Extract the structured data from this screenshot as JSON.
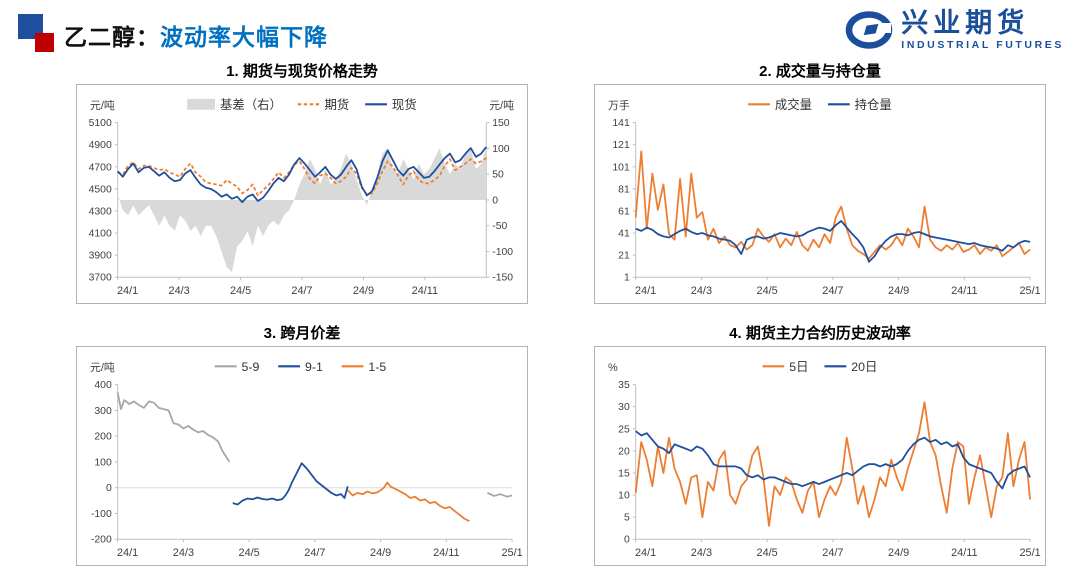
{
  "header": {
    "topic": "乙二醇：",
    "subtitle": "波动率大幅下降",
    "logo_cn": "兴业期货",
    "logo_en": "INDUSTRIAL FUTURES"
  },
  "colors": {
    "accent_blue": "#0070C0",
    "brand_blue": "#1B4F9C",
    "line_blue": "#1F4E9E",
    "line_orange": "#ED7D31",
    "line_gray": "#A6A6A6",
    "area_gray": "#D9D9D9",
    "deco_blue": "#1F4E9E",
    "deco_red": "#C00000"
  },
  "chart_data": [
    {
      "type": "line",
      "title": "1. 期货与现货价格走势",
      "unit_left": "元/吨",
      "unit_right": "元/吨",
      "x_range": [
        0,
        12
      ],
      "x_tick_pos": [
        0,
        2,
        4,
        6,
        8,
        10
      ],
      "x_ticks": [
        "24/1",
        "24/3",
        "24/5",
        "24/7",
        "24/9",
        "24/11"
      ],
      "ylim_left": [
        3700,
        5100
      ],
      "yticks_left": [
        3700,
        3900,
        4100,
        4300,
        4500,
        4700,
        4900,
        5100
      ],
      "ylim_right": [
        -150,
        150
      ],
      "yticks_right": [
        -150,
        -100,
        -50,
        0,
        50,
        100,
        150
      ],
      "grid": false,
      "legend_position": "top",
      "series": [
        {
          "name": "基差（右）",
          "type": "area",
          "axis": "right",
          "color": "#D9D9D9",
          "values": [
            10,
            -20,
            -30,
            -10,
            -30,
            -20,
            -10,
            -30,
            -50,
            -30,
            -50,
            -60,
            -30,
            -40,
            -60,
            -50,
            -70,
            -50,
            -50,
            -70,
            -100,
            -130,
            -140,
            -90,
            -80,
            -60,
            -90,
            -50,
            -70,
            -50,
            -40,
            -50,
            -30,
            -20,
            0,
            30,
            50,
            80,
            60,
            30,
            60,
            30,
            40,
            60,
            90,
            70,
            40,
            10,
            -10,
            20,
            50,
            90,
            100,
            60,
            50,
            80,
            60,
            40,
            70,
            50,
            60,
            80,
            100,
            70,
            50,
            70,
            60,
            90,
            100,
            60,
            70,
            100
          ]
        },
        {
          "name": "期货",
          "type": "line",
          "dash": true,
          "axis": "left",
          "color": "#ED7D31",
          "values": [
            4650,
            4630,
            4710,
            4740,
            4680,
            4710,
            4710,
            4690,
            4670,
            4680,
            4650,
            4630,
            4610,
            4680,
            4730,
            4650,
            4610,
            4560,
            4550,
            4540,
            4530,
            4580,
            4550,
            4520,
            4460,
            4490,
            4540,
            4440,
            4490,
            4530,
            4590,
            4650,
            4600,
            4650,
            4720,
            4750,
            4680,
            4590,
            4550,
            4620,
            4640,
            4600,
            4550,
            4570,
            4610,
            4690,
            4640,
            4510,
            4450,
            4460,
            4550,
            4660,
            4750,
            4700,
            4620,
            4540,
            4620,
            4660,
            4580,
            4550,
            4550,
            4580,
            4620,
            4710,
            4770,
            4670,
            4700,
            4730,
            4770,
            4730,
            4750,
            4780
          ]
        },
        {
          "name": "现货",
          "type": "line",
          "axis": "left",
          "color": "#1F4E9E",
          "values": [
            4660,
            4610,
            4680,
            4730,
            4650,
            4690,
            4700,
            4660,
            4620,
            4650,
            4600,
            4570,
            4580,
            4640,
            4670,
            4600,
            4540,
            4510,
            4500,
            4470,
            4430,
            4450,
            4410,
            4430,
            4380,
            4430,
            4450,
            4390,
            4420,
            4480,
            4550,
            4600,
            4570,
            4630,
            4720,
            4780,
            4730,
            4670,
            4610,
            4650,
            4700,
            4630,
            4590,
            4630,
            4700,
            4760,
            4680,
            4520,
            4440,
            4480,
            4600,
            4750,
            4850,
            4760,
            4670,
            4620,
            4680,
            4700,
            4650,
            4600,
            4610,
            4660,
            4720,
            4780,
            4820,
            4740,
            4760,
            4820,
            4870,
            4790,
            4820,
            4880
          ]
        }
      ]
    },
    {
      "type": "line",
      "title": "2. 成交量与持仓量",
      "unit_left": "万手",
      "x_range": [
        0,
        12
      ],
      "x_tick_pos": [
        0,
        2,
        4,
        6,
        8,
        10,
        12
      ],
      "x_ticks": [
        "24/1",
        "24/3",
        "24/5",
        "24/7",
        "24/9",
        "24/11",
        "25/1"
      ],
      "ylim_left": [
        1,
        141
      ],
      "yticks_left": [
        1,
        21,
        41,
        61,
        81,
        101,
        121,
        141
      ],
      "grid": false,
      "legend_position": "top",
      "series": [
        {
          "name": "成交量",
          "type": "line",
          "axis": "left",
          "color": "#ED7D31",
          "values": [
            55,
            115,
            45,
            95,
            62,
            85,
            40,
            35,
            90,
            38,
            95,
            55,
            60,
            35,
            45,
            32,
            38,
            30,
            28,
            33,
            26,
            30,
            45,
            38,
            33,
            40,
            28,
            36,
            30,
            42,
            30,
            25,
            35,
            28,
            40,
            32,
            55,
            65,
            45,
            30,
            25,
            22,
            18,
            24,
            30,
            26,
            30,
            38,
            30,
            45,
            38,
            28,
            65,
            35,
            28,
            25,
            30,
            26,
            32,
            24,
            26,
            30,
            22,
            28,
            25,
            30,
            20,
            24,
            28,
            32,
            22,
            26
          ]
        },
        {
          "name": "持仓量",
          "type": "line",
          "axis": "left",
          "color": "#1F4E9E",
          "values": [
            45,
            43,
            46,
            44,
            40,
            38,
            37,
            40,
            43,
            45,
            42,
            40,
            41,
            39,
            38,
            36,
            35,
            34,
            30,
            22,
            35,
            37,
            38,
            36,
            37,
            39,
            41,
            40,
            39,
            38,
            39,
            42,
            44,
            46,
            45,
            43,
            48,
            52,
            46,
            40,
            35,
            28,
            15,
            20,
            28,
            34,
            38,
            40,
            40,
            39,
            41,
            42,
            40,
            38,
            37,
            36,
            35,
            34,
            33,
            32,
            31,
            32,
            30,
            29,
            28,
            27,
            25,
            30,
            28,
            32,
            34,
            33
          ]
        }
      ]
    },
    {
      "type": "line",
      "title": "3. 跨月价差",
      "unit_left": "元/吨",
      "x_range": [
        0,
        12
      ],
      "x_tick_pos": [
        0,
        2,
        4,
        6,
        8,
        10,
        12
      ],
      "x_ticks": [
        "24/1",
        "24/3",
        "24/5",
        "24/7",
        "24/9",
        "24/11",
        "25/1"
      ],
      "ylim_left": [
        -200,
        400
      ],
      "yticks_left": [
        -200,
        -100,
        0,
        100,
        200,
        300,
        400
      ],
      "zero_line": true,
      "grid": false,
      "legend_position": "top",
      "series": [
        {
          "name": "5-9",
          "type": "line",
          "axis": "left",
          "color": "#A6A6A6",
          "x": [
            0,
            0.1,
            0.2,
            0.35,
            0.5,
            0.65,
            0.8,
            0.95,
            1.1,
            1.25,
            1.4,
            1.55,
            1.7,
            1.85,
            2.0,
            2.15,
            2.3,
            2.45,
            2.6,
            2.75,
            2.9,
            3.05,
            3.2,
            3.4
          ],
          "values": [
            370,
            305,
            340,
            325,
            335,
            320,
            310,
            335,
            330,
            310,
            305,
            300,
            250,
            245,
            230,
            240,
            225,
            215,
            220,
            205,
            195,
            180,
            140,
            100
          ]
        },
        {
          "name": "9-1",
          "type": "line",
          "axis": "left",
          "color": "#1F4E9E",
          "x": [
            3.5,
            3.65,
            3.8,
            3.95,
            4.1,
            4.25,
            4.4,
            4.55,
            4.7,
            4.85,
            5.0,
            5.1,
            5.2,
            5.3,
            5.4,
            5.5,
            5.6,
            5.75,
            5.9,
            6.05,
            6.2,
            6.35,
            6.5,
            6.65,
            6.8,
            6.9,
            7.0
          ],
          "values": [
            -60,
            -65,
            -50,
            -42,
            -45,
            -38,
            -44,
            -46,
            -42,
            -48,
            -45,
            -30,
            -10,
            20,
            45,
            70,
            95,
            75,
            50,
            25,
            10,
            -5,
            -20,
            -30,
            -25,
            -40,
            5
          ]
        },
        {
          "name": "1-5",
          "type": "line",
          "axis": "left",
          "color": "#ED7D31",
          "x": [
            7.0,
            7.15,
            7.3,
            7.45,
            7.6,
            7.75,
            7.9,
            8.0,
            8.1,
            8.2,
            8.3,
            8.45,
            8.6,
            8.75,
            8.9,
            9.05,
            9.2,
            9.35,
            9.5,
            9.65,
            9.8,
            9.95,
            10.1,
            10.25,
            10.4,
            10.55,
            10.7
          ],
          "values": [
            -10,
            -30,
            -20,
            -25,
            -15,
            -22,
            -18,
            -10,
            0,
            20,
            5,
            -5,
            -15,
            -25,
            -40,
            -35,
            -50,
            -45,
            -60,
            -55,
            -70,
            -80,
            -75,
            -90,
            -105,
            -120,
            -130
          ]
        },
        {
          "name": "5-9",
          "type": "line",
          "axis": "left",
          "color": "#A6A6A6",
          "legend": false,
          "x": [
            11.25,
            11.45,
            11.65,
            11.85,
            12.0
          ],
          "values": [
            -20,
            -32,
            -25,
            -35,
            -30
          ]
        }
      ]
    },
    {
      "type": "line",
      "title": "4. 期货主力合约历史波动率",
      "unit_left": "%",
      "x_range": [
        0,
        12
      ],
      "x_tick_pos": [
        0,
        2,
        4,
        6,
        8,
        10,
        12
      ],
      "x_ticks": [
        "24/1",
        "24/3",
        "24/5",
        "24/7",
        "24/9",
        "24/11",
        "25/1"
      ],
      "ylim_left": [
        0,
        35
      ],
      "yticks_left": [
        0,
        5,
        10,
        15,
        20,
        25,
        30,
        35
      ],
      "grid": false,
      "legend_position": "top",
      "series": [
        {
          "name": "5日",
          "type": "line",
          "axis": "left",
          "color": "#ED7D31",
          "values": [
            10.5,
            22,
            18,
            12,
            21,
            15,
            23,
            16,
            13,
            8,
            14,
            14.5,
            5,
            13,
            11,
            18,
            20,
            10,
            8,
            12,
            13.5,
            19,
            21,
            14,
            3,
            12,
            10,
            14,
            13,
            9,
            6,
            11,
            13,
            5,
            9,
            12,
            10,
            13,
            23,
            16,
            8,
            12,
            5,
            9,
            14,
            12,
            18,
            14,
            11,
            16,
            20,
            24,
            31,
            22,
            19,
            12,
            6,
            16,
            22,
            21,
            8,
            14,
            19,
            12,
            5,
            12,
            14,
            24,
            12,
            18,
            22,
            9
          ]
        },
        {
          "name": "20日",
          "type": "line",
          "axis": "left",
          "color": "#1F4E9E",
          "values": [
            24.5,
            23.5,
            24,
            22.5,
            21,
            20.5,
            19.5,
            21.5,
            21,
            20.5,
            20,
            21,
            20.5,
            19,
            17,
            16.5,
            16.5,
            16.5,
            16.5,
            16,
            14.5,
            14,
            14.5,
            13.5,
            14,
            14,
            13.5,
            13,
            12.5,
            12.5,
            12,
            12.5,
            13,
            12.5,
            13,
            13.5,
            14,
            14.5,
            15,
            14.5,
            15.5,
            16.5,
            17,
            17,
            16.5,
            17,
            16.5,
            17,
            18,
            20,
            21.5,
            22.5,
            23,
            22,
            22.5,
            21.5,
            22,
            21,
            21.5,
            18.5,
            17,
            16.5,
            16,
            15.5,
            15,
            13,
            11.5,
            14.5,
            15.5,
            16,
            16.5,
            14
          ]
        }
      ]
    }
  ]
}
